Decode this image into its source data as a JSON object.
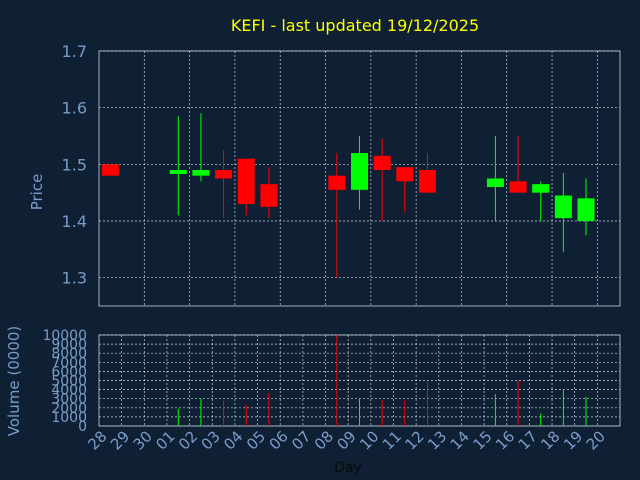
{
  "chart_data": {
    "type": "candlestick",
    "title": "KEFI - last updated 19/12/2025",
    "xlabel": "Day",
    "ylabel": "Price",
    "volume_label": "Volume (0000)",
    "price_ylim": [
      1.25,
      1.7
    ],
    "price_ticks": [
      "1.3",
      "1.4",
      "1.5",
      "1.6",
      "1.7"
    ],
    "volume_ylim": [
      0,
      10000
    ],
    "volume_ticks": [
      "0",
      "1000",
      "2000",
      "3000",
      "4000",
      "5000",
      "6000",
      "7000",
      "8000",
      "9000",
      "10000"
    ],
    "grid": true,
    "days": [
      "28",
      "29",
      "30",
      "01",
      "02",
      "03",
      "04",
      "05",
      "06",
      "07",
      "08",
      "09",
      "10",
      "11",
      "12",
      "13",
      "14",
      "15",
      "16",
      "17",
      "18",
      "19",
      "20"
    ],
    "candles": [
      {
        "day": "28",
        "open": 1.5,
        "close": 1.48,
        "high": 1.5,
        "low": 1.48,
        "volume": 0
      },
      {
        "day": "01",
        "open": 1.485,
        "close": 1.49,
        "high": 1.585,
        "low": 1.41,
        "volume": 1900
      },
      {
        "day": "02",
        "open": 1.48,
        "close": 1.49,
        "high": 1.59,
        "low": 1.47,
        "volume": 3000
      },
      {
        "day": "03",
        "open": 1.49,
        "close": 1.475,
        "high": 1.525,
        "low": 1.405,
        "volume": 2800
      },
      {
        "day": "04",
        "open": 1.51,
        "close": 1.43,
        "high": 1.51,
        "low": 1.41,
        "volume": 2300
      },
      {
        "day": "05",
        "open": 1.465,
        "close": 1.425,
        "high": 1.495,
        "low": 1.405,
        "volume": 3600
      },
      {
        "day": "08",
        "open": 1.48,
        "close": 1.455,
        "high": 1.52,
        "low": 1.3,
        "volume": 10000
      },
      {
        "day": "09",
        "open": 1.455,
        "close": 1.52,
        "high": 1.55,
        "low": 1.42,
        "volume": 3000
      },
      {
        "day": "10",
        "open": 1.515,
        "close": 1.49,
        "high": 1.545,
        "low": 1.4,
        "volume": 2900
      },
      {
        "day": "11",
        "open": 1.495,
        "close": 1.47,
        "high": 1.495,
        "low": 1.415,
        "volume": 2800
      },
      {
        "day": "12",
        "open": 1.49,
        "close": 1.45,
        "high": 1.52,
        "low": 1.45,
        "volume": 5000
      },
      {
        "day": "15",
        "open": 1.46,
        "close": 1.475,
        "high": 1.55,
        "low": 1.4,
        "volume": 3500
      },
      {
        "day": "16",
        "open": 1.47,
        "close": 1.45,
        "high": 1.55,
        "low": 1.45,
        "volume": 5000
      },
      {
        "day": "17",
        "open": 1.45,
        "close": 1.465,
        "high": 1.47,
        "low": 1.4,
        "volume": 1400
      },
      {
        "day": "18",
        "open": 1.405,
        "close": 1.445,
        "high": 1.485,
        "low": 1.345,
        "volume": 4000
      },
      {
        "day": "19",
        "open": 1.4,
        "close": 1.44,
        "high": 1.475,
        "low": 1.375,
        "volume": 3200
      }
    ],
    "colors": {
      "background": "#0f2035",
      "title": "#ffff00",
      "axis_text": "#7a9cc8",
      "grid": "#c8d4e0",
      "up": "#00ff00",
      "down": "#ff0000"
    }
  }
}
